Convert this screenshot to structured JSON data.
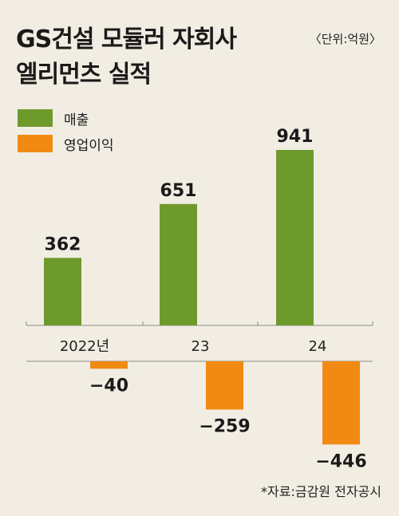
{
  "title_line1": "GS건설 모듈러 자회사",
  "title_line2": "엘리먼츠 실적",
  "unit_label": "〈단위:억원〉",
  "source": "*자료:금감원 전자공시",
  "colors": {
    "sales": "#6e9a2c",
    "operating_profit": "#f08a13",
    "background": "#f2ede3"
  },
  "chart_data": {
    "type": "bar",
    "categories": [
      "2022년",
      "23",
      "24"
    ],
    "series": [
      {
        "name": "매출",
        "values": [
          362,
          651,
          941
        ]
      },
      {
        "name": "영업이익",
        "values": [
          -40,
          -259,
          -446
        ]
      }
    ],
    "data_labels": {
      "매출": [
        "362",
        "651",
        "941"
      ],
      "영업이익": [
        "−40",
        "−259",
        "−446"
      ]
    }
  }
}
